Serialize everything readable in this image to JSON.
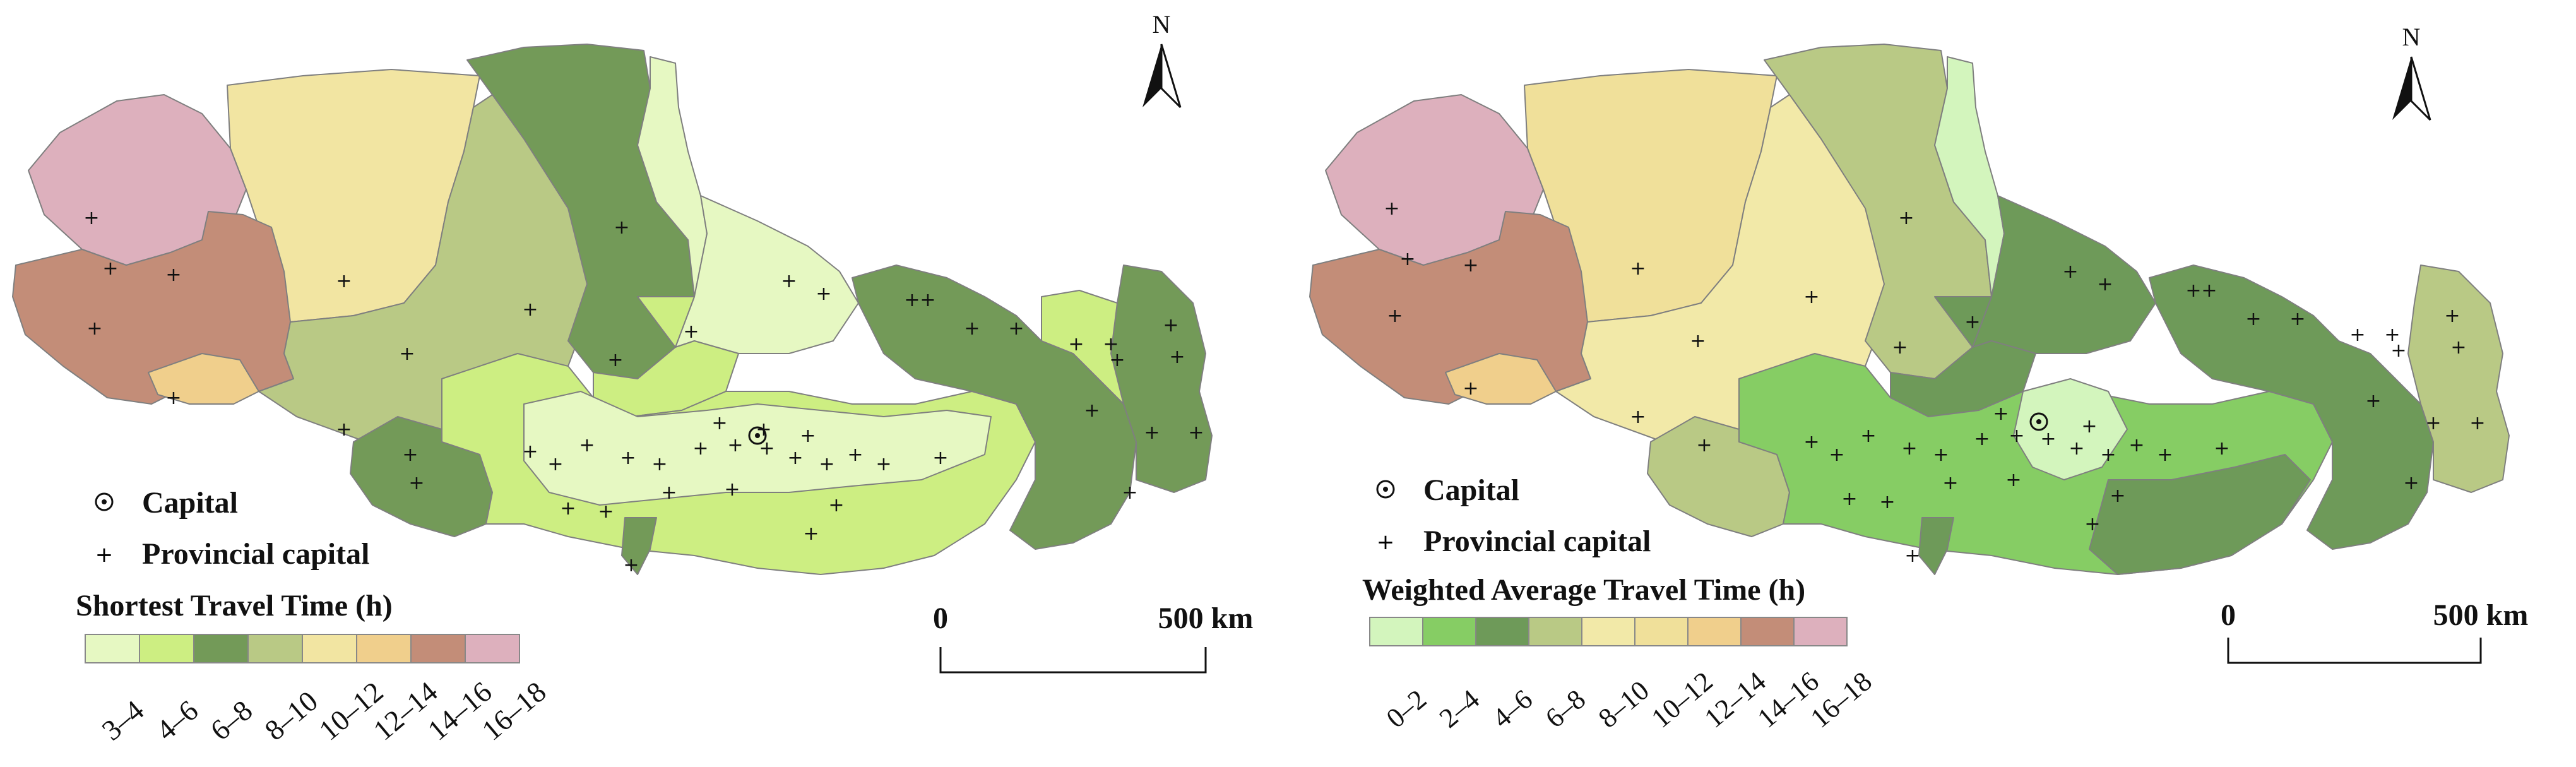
{
  "north_label": "N",
  "colors": {
    "c3_4": "#e6f8c2",
    "c4_6": "#cdee82",
    "c6_8": "#739a58",
    "c8_10": "#b9c985",
    "c10_12": "#f2e5a2",
    "c12_14": "#f0cf8c",
    "c14_16": "#c38d78",
    "c16_18": "#ddb0bd",
    "w0_2": "#d3f5bd",
    "w2_4": "#86cd64",
    "w4_6": "#6e9a59"
  },
  "maps": [
    {
      "legend_point_capital": "Capital",
      "legend_point_provincial": "Provincial capital",
      "legend_title": "Shortest Travel Time (h)",
      "legend_classes": [
        "3–4",
        "4–6",
        "6–8",
        "8–10",
        "10–12",
        "12–14",
        "14–16",
        "16–18"
      ],
      "scale_start": "0",
      "scale_end": "500 km"
    },
    {
      "legend_point_capital": "Capital",
      "legend_point_provincial": "Provincial capital",
      "legend_title": "Weighted Average Travel Time (h)",
      "legend_classes": [
        "0–2",
        "2–4",
        "4–6",
        "6–8",
        "8–10",
        "10–12",
        "12–14",
        "14–16",
        "16–18"
      ],
      "scale_start": "0",
      "scale_end": "500 km"
    }
  ]
}
